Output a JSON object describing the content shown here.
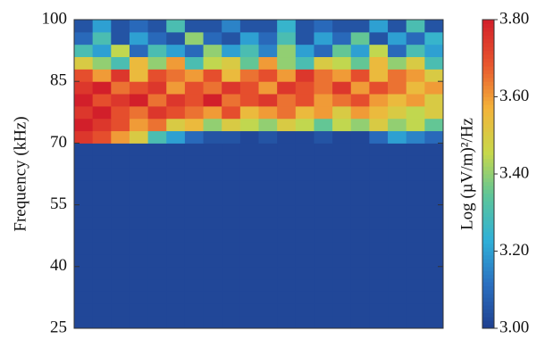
{
  "chart_data": {
    "type": "heatmap",
    "y_label": "Frequency (kHz)",
    "colorbar_label": "Log (µV/m)²/Hz",
    "ylim": [
      25,
      100
    ],
    "yticks": [
      25,
      40,
      55,
      70,
      85,
      100
    ],
    "zlim": [
      3.0,
      3.8
    ],
    "zticks": [
      {
        "value": 3.0,
        "label": "3.00"
      },
      {
        "value": 3.2,
        "label": "3.20"
      },
      {
        "value": 3.4,
        "label": "3.40"
      },
      {
        "value": 3.6,
        "label": "3.60"
      },
      {
        "value": 3.8,
        "label": "3.80"
      }
    ],
    "colors": [
      "#1f3f8f",
      "#2a6fc0",
      "#2fb0d8",
      "#5cc59a",
      "#c8d84a",
      "#f3b33a",
      "#e8552e",
      "#d21f2a"
    ],
    "z": [
      [
        3.02,
        3.02,
        3.02,
        3.02,
        3.02,
        3.02,
        3.02,
        3.02,
        3.02,
        3.02,
        3.02,
        3.02,
        3.02,
        3.02,
        3.02,
        3.02,
        3.02,
        3.02,
        3.02,
        3.02
      ],
      [
        3.02,
        3.02,
        3.02,
        3.02,
        3.02,
        3.02,
        3.02,
        3.02,
        3.02,
        3.02,
        3.02,
        3.02,
        3.02,
        3.02,
        3.02,
        3.02,
        3.02,
        3.02,
        3.02,
        3.02
      ],
      [
        3.02,
        3.02,
        3.02,
        3.02,
        3.02,
        3.02,
        3.02,
        3.02,
        3.02,
        3.02,
        3.02,
        3.02,
        3.02,
        3.02,
        3.02,
        3.02,
        3.02,
        3.02,
        3.02,
        3.02
      ],
      [
        3.02,
        3.02,
        3.02,
        3.02,
        3.02,
        3.02,
        3.02,
        3.02,
        3.02,
        3.02,
        3.02,
        3.02,
        3.02,
        3.02,
        3.02,
        3.02,
        3.02,
        3.02,
        3.02,
        3.02
      ],
      [
        3.02,
        3.02,
        3.02,
        3.02,
        3.02,
        3.02,
        3.02,
        3.02,
        3.02,
        3.02,
        3.02,
        3.02,
        3.02,
        3.02,
        3.02,
        3.02,
        3.02,
        3.02,
        3.02,
        3.02
      ],
      [
        3.02,
        3.02,
        3.02,
        3.02,
        3.02,
        3.02,
        3.02,
        3.02,
        3.02,
        3.02,
        3.02,
        3.02,
        3.02,
        3.02,
        3.02,
        3.02,
        3.02,
        3.02,
        3.02,
        3.02
      ],
      [
        3.02,
        3.02,
        3.02,
        3.02,
        3.02,
        3.02,
        3.02,
        3.02,
        3.02,
        3.02,
        3.02,
        3.02,
        3.02,
        3.02,
        3.02,
        3.02,
        3.02,
        3.02,
        3.02,
        3.02
      ],
      [
        3.02,
        3.02,
        3.02,
        3.02,
        3.02,
        3.02,
        3.02,
        3.02,
        3.02,
        3.02,
        3.02,
        3.02,
        3.02,
        3.02,
        3.02,
        3.02,
        3.02,
        3.02,
        3.02,
        3.02
      ],
      [
        3.02,
        3.02,
        3.02,
        3.02,
        3.02,
        3.02,
        3.02,
        3.02,
        3.02,
        3.02,
        3.02,
        3.02,
        3.02,
        3.02,
        3.02,
        3.02,
        3.02,
        3.02,
        3.02,
        3.02
      ],
      [
        3.02,
        3.02,
        3.02,
        3.02,
        3.02,
        3.02,
        3.02,
        3.02,
        3.02,
        3.02,
        3.02,
        3.02,
        3.02,
        3.02,
        3.02,
        3.02,
        3.02,
        3.02,
        3.02,
        3.02
      ],
      [
        3.02,
        3.02,
        3.02,
        3.02,
        3.02,
        3.02,
        3.02,
        3.02,
        3.02,
        3.02,
        3.02,
        3.02,
        3.02,
        3.02,
        3.02,
        3.02,
        3.02,
        3.02,
        3.02,
        3.02
      ],
      [
        3.02,
        3.02,
        3.02,
        3.02,
        3.02,
        3.02,
        3.02,
        3.02,
        3.02,
        3.02,
        3.02,
        3.02,
        3.02,
        3.02,
        3.02,
        3.02,
        3.02,
        3.02,
        3.02,
        3.02
      ],
      [
        3.02,
        3.02,
        3.02,
        3.02,
        3.02,
        3.02,
        3.02,
        3.02,
        3.02,
        3.02,
        3.02,
        3.02,
        3.02,
        3.02,
        3.02,
        3.02,
        3.02,
        3.02,
        3.02,
        3.02
      ],
      [
        3.02,
        3.02,
        3.02,
        3.02,
        3.02,
        3.02,
        3.02,
        3.02,
        3.02,
        3.02,
        3.02,
        3.02,
        3.02,
        3.02,
        3.02,
        3.02,
        3.02,
        3.02,
        3.02,
        3.02
      ],
      [
        3.02,
        3.02,
        3.02,
        3.02,
        3.02,
        3.02,
        3.02,
        3.02,
        3.02,
        3.02,
        3.02,
        3.02,
        3.02,
        3.02,
        3.02,
        3.02,
        3.02,
        3.02,
        3.02,
        3.02
      ],
      [
        3.75,
        3.7,
        3.6,
        3.5,
        3.3,
        3.2,
        3.1,
        3.05,
        3.05,
        3.02,
        3.05,
        3.02,
        3.02,
        3.05,
        3.02,
        3.02,
        3.1,
        3.2,
        3.15,
        3.1
      ],
      [
        3.8,
        3.75,
        3.7,
        3.6,
        3.65,
        3.5,
        3.55,
        3.4,
        3.5,
        3.45,
        3.4,
        3.5,
        3.45,
        3.35,
        3.45,
        3.4,
        3.5,
        3.4,
        3.45,
        3.35
      ],
      [
        3.75,
        3.8,
        3.7,
        3.65,
        3.75,
        3.7,
        3.65,
        3.6,
        3.7,
        3.55,
        3.6,
        3.65,
        3.55,
        3.6,
        3.5,
        3.6,
        3.55,
        3.5,
        3.45,
        3.5
      ],
      [
        3.8,
        3.7,
        3.75,
        3.8,
        3.65,
        3.75,
        3.7,
        3.8,
        3.65,
        3.7,
        3.75,
        3.65,
        3.7,
        3.6,
        3.65,
        3.7,
        3.6,
        3.55,
        3.6,
        3.5
      ],
      [
        3.75,
        3.8,
        3.65,
        3.7,
        3.75,
        3.6,
        3.7,
        3.65,
        3.75,
        3.7,
        3.6,
        3.75,
        3.7,
        3.65,
        3.75,
        3.6,
        3.7,
        3.65,
        3.55,
        3.6
      ],
      [
        3.7,
        3.6,
        3.75,
        3.55,
        3.7,
        3.65,
        3.6,
        3.7,
        3.55,
        3.65,
        3.7,
        3.6,
        3.75,
        3.65,
        3.6,
        3.7,
        3.55,
        3.65,
        3.6,
        3.5
      ],
      [
        3.5,
        3.4,
        3.3,
        3.55,
        3.4,
        3.6,
        3.3,
        3.45,
        3.5,
        3.35,
        3.6,
        3.4,
        3.3,
        3.5,
        3.45,
        3.35,
        3.55,
        3.4,
        3.5,
        3.3
      ],
      [
        3.3,
        3.2,
        3.45,
        3.1,
        3.3,
        3.2,
        3.1,
        3.4,
        3.2,
        3.3,
        3.15,
        3.4,
        3.2,
        3.1,
        3.35,
        3.2,
        3.45,
        3.1,
        3.3,
        3.2
      ],
      [
        3.1,
        3.3,
        3.05,
        3.2,
        3.1,
        3.05,
        3.4,
        3.1,
        3.05,
        3.2,
        3.1,
        3.3,
        3.05,
        3.2,
        3.1,
        3.35,
        3.05,
        3.2,
        3.1,
        3.25
      ],
      [
        3.05,
        3.2,
        3.05,
        3.1,
        3.05,
        3.3,
        3.05,
        3.05,
        3.15,
        3.05,
        3.05,
        3.25,
        3.05,
        3.1,
        3.05,
        3.05,
        3.2,
        3.05,
        3.3,
        3.05
      ]
    ]
  }
}
